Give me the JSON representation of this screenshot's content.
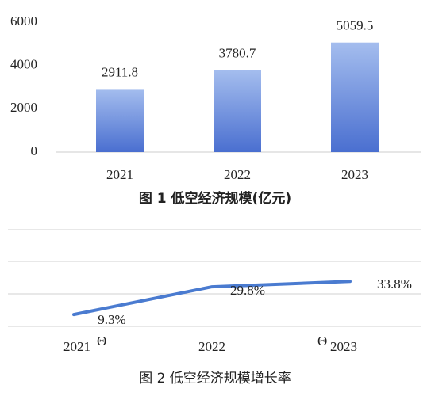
{
  "chart_data": [
    {
      "type": "bar",
      "title": "图 1  低空经济规模(亿元)",
      "categories": [
        "2021",
        "2022",
        "2023"
      ],
      "values": [
        2911.8,
        3780.7,
        5059.5
      ],
      "color": "#4a6fd0",
      "ylim": [
        0,
        6000
      ],
      "yticks": [
        0,
        2000,
        4000,
        6000
      ],
      "grid": false
    },
    {
      "type": "line",
      "title": "图 2  低空经济规模增长率",
      "categories": [
        "2021",
        "2022",
        "2023"
      ],
      "values": [
        9.3,
        29.8,
        33.8
      ],
      "value_labels": [
        "9.3%",
        "29.8%",
        "33.8%"
      ],
      "color": "#4a7bd0",
      "ylim": [
        0,
        72
      ],
      "annotations": [
        "Θ",
        "Θ"
      ]
    }
  ]
}
